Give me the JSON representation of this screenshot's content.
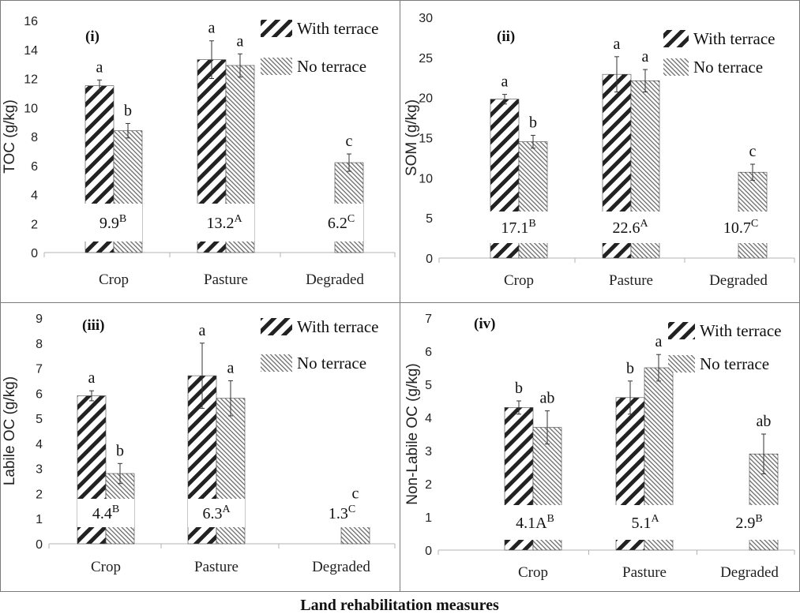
{
  "figure": {
    "xlabel": "Land rehabilitation measures",
    "colors": {
      "border": "#7a7a7a",
      "axis": "#b3b3b3",
      "bar_stroke": "#333333",
      "text": "#111111"
    }
  },
  "chart_data": [
    {
      "type": "bar",
      "panel": "(i)",
      "ylabel": "TOC (g/kg)",
      "ylim": [
        0,
        16
      ],
      "yticks": [
        0,
        2,
        4,
        6,
        8,
        10,
        12,
        14,
        16
      ],
      "categories": [
        "Crop",
        "Pasture",
        "Degraded"
      ],
      "series": [
        {
          "name": "With terrace",
          "values": [
            11.5,
            13.3,
            null
          ],
          "errors": [
            0.4,
            1.3,
            null
          ],
          "letters": [
            "a",
            "a",
            null
          ]
        },
        {
          "name": "No terrace",
          "values": [
            8.4,
            12.9,
            6.2
          ],
          "errors": [
            0.5,
            0.8,
            0.6
          ],
          "letters": [
            "b",
            "a",
            "c"
          ]
        }
      ],
      "means": [
        {
          "value": "9.9",
          "sup": "B"
        },
        {
          "value": "13.2",
          "sup": "A"
        },
        {
          "value": "6.2",
          "sup": "C"
        }
      ]
    },
    {
      "type": "bar",
      "panel": "(ii)",
      "ylabel": "SOM (g/kg)",
      "ylim": [
        0,
        30
      ],
      "yticks": [
        0,
        5,
        10,
        15,
        20,
        25,
        30
      ],
      "categories": [
        "Crop",
        "Pasture",
        "Degraded"
      ],
      "series": [
        {
          "name": "With terrace",
          "values": [
            19.8,
            22.9,
            null
          ],
          "errors": [
            0.6,
            2.2,
            null
          ],
          "letters": [
            "a",
            "a",
            null
          ]
        },
        {
          "name": "No terrace",
          "values": [
            14.5,
            22.1,
            10.7
          ],
          "errors": [
            0.8,
            1.4,
            1.0
          ],
          "letters": [
            "b",
            "a",
            "c"
          ]
        }
      ],
      "means": [
        {
          "value": "17.1",
          "sup": "B"
        },
        {
          "value": "22.6",
          "sup": "A"
        },
        {
          "value": "10.7",
          "sup": "C"
        }
      ]
    },
    {
      "type": "bar",
      "panel": "(iii)",
      "ylabel": "Labile OC (g/kg)",
      "ylim": [
        0,
        9
      ],
      "yticks": [
        0,
        1,
        2,
        3,
        4,
        5,
        6,
        7,
        8,
        9
      ],
      "categories": [
        "Crop",
        "Pasture",
        "Degraded"
      ],
      "series": [
        {
          "name": "With terrace",
          "values": [
            5.9,
            6.7,
            null
          ],
          "errors": [
            0.2,
            1.3,
            null
          ],
          "letters": [
            "a",
            "a",
            null
          ]
        },
        {
          "name": "No terrace",
          "values": [
            2.8,
            5.8,
            1.3
          ],
          "errors": [
            0.4,
            0.7,
            0.2
          ],
          "letters": [
            "b",
            "a",
            "c"
          ]
        }
      ],
      "means": [
        {
          "value": "4.4",
          "sup": "B"
        },
        {
          "value": "6.3",
          "sup": "A"
        },
        {
          "value": "1.3",
          "sup": "C"
        }
      ]
    },
    {
      "type": "bar",
      "panel": "(iv)",
      "ylabel": "Non-Labile OC (g/kg)",
      "ylim": [
        0,
        7
      ],
      "yticks": [
        0,
        1,
        2,
        3,
        4,
        5,
        6,
        7
      ],
      "categories": [
        "Crop",
        "Pasture",
        "Degraded"
      ],
      "series": [
        {
          "name": "With terrace",
          "values": [
            4.3,
            4.6,
            null
          ],
          "errors": [
            0.2,
            0.5,
            null
          ],
          "letters": [
            "b",
            "b",
            null
          ]
        },
        {
          "name": "No terrace",
          "values": [
            3.7,
            5.5,
            2.9
          ],
          "errors": [
            0.5,
            0.4,
            0.6
          ],
          "letters": [
            "ab",
            "a",
            "ab"
          ]
        }
      ],
      "means": [
        {
          "value": "4.1A",
          "sup": "B"
        },
        {
          "value": "5.1",
          "sup": "A"
        },
        {
          "value": "2.9",
          "sup": "B"
        }
      ]
    }
  ]
}
